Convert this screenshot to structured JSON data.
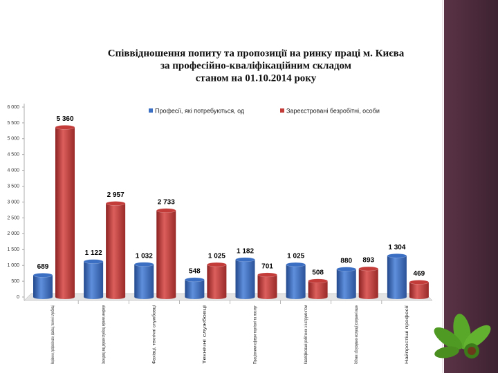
{
  "chart_data": {
    "type": "bar",
    "title": "Співвідношення попиту та пропозиції на ринку праці м. Києва",
    "subtitle": "за професійно-кваліфікаційним складом",
    "subtitle2": "станом на 01.10.2014 року",
    "categories": [
      "Керівники, професіонали, фахівці, технічні службовці",
      "Законодавці, вищі державні службовці, керівники, менеджери",
      "Фахівці, технічні службовці",
      "Технічні службовці",
      "Працівники сфери торгівлі та послуг",
      "Кваліфіковані робітники з інструментом",
      "Робітники з обслуговування, експлуатації устаткування і машин",
      "Найпростіші професії"
    ],
    "series": [
      {
        "name": "Професії, які потребуються, од",
        "color": "#3b6fc4",
        "values": [
          689,
          1122,
          1032,
          548,
          1182,
          1025,
          880,
          1304
        ],
        "value_labels": [
          "689",
          "1 122",
          "1 032",
          "548",
          "1 182",
          "1 025",
          "880",
          "1 304"
        ]
      },
      {
        "name": "Зареєстровані безробітні, особи",
        "color": "#c43c3a",
        "values": [
          5360,
          2957,
          2733,
          1025,
          701,
          508,
          893,
          469
        ],
        "value_labels": [
          "5 360",
          "2 957",
          "2 733",
          "1 025",
          "701",
          "508",
          "893",
          "469"
        ]
      }
    ],
    "ylim": [
      0,
      6000
    ],
    "yticks": [
      0,
      500,
      {
        "value": 1000,
        "label": "1 000"
      },
      {
        "value": 1500,
        "label": "1 500"
      },
      {
        "value": 2000,
        "label": "2 000"
      },
      {
        "value": 2500,
        "label": "2 500"
      },
      {
        "value": 3000,
        "label": "3 000"
      },
      {
        "value": 3500,
        "label": "3 500"
      },
      {
        "value": 4000,
        "label": "4 000"
      },
      {
        "value": 4500,
        "label": "4 500"
      },
      {
        "value": 5000,
        "label": "5 000"
      },
      {
        "value": 5500,
        "label": "5 500"
      },
      {
        "value": 6000,
        "label": "6 000"
      }
    ],
    "legend": "top"
  }
}
